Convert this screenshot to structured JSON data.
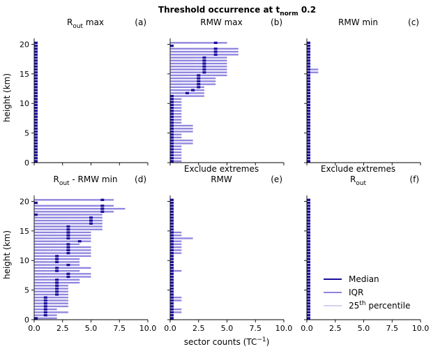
{
  "figure": {
    "title_main": "Threshold occurrence at t",
    "title_sub": "norm",
    "title_tail": " 0.2",
    "ylabel": "height (km)",
    "xlabel_main": "sector counts (TC",
    "xlabel_sup": "−1",
    "xlabel_tail": ")",
    "colors": {
      "median": "#1a0d9c",
      "iqr": "#8f85de",
      "p25": "#d4d0f2"
    },
    "legend": {
      "placement": "lower-right",
      "items": [
        {
          "key": "median",
          "text": "Median"
        },
        {
          "key": "iqr",
          "text": "IQR"
        },
        {
          "key": "p25",
          "text": "25",
          "sup": "th",
          "tail": " percentile"
        }
      ]
    }
  },
  "chart_data": [
    {
      "type": "bar",
      "letter": "(a)",
      "title_lines": [
        {
          "main": "R",
          "sub": "out",
          "tail": " max"
        }
      ],
      "xlabel": "",
      "ylabel": "height (km)",
      "xlim": [
        0,
        10
      ],
      "ylim": [
        0,
        21
      ],
      "x_ticks": [
        "0.0",
        "2.5",
        "5.0",
        "7.5",
        "10.0"
      ],
      "y_ticks": [
        "0",
        "5",
        "10",
        "15",
        "20"
      ],
      "heights": [
        0.25,
        0.75,
        1.25,
        1.75,
        2.25,
        2.75,
        3.25,
        3.75,
        4.25,
        4.75,
        5.25,
        5.75,
        6.25,
        6.75,
        7.25,
        7.75,
        8.25,
        8.75,
        9.25,
        9.75,
        10.25,
        10.75,
        11.25,
        11.75,
        12.25,
        12.75,
        13.25,
        13.75,
        14.25,
        14.75,
        15.25,
        15.75,
        16.25,
        16.75,
        17.25,
        17.75,
        18.25,
        18.75,
        19.25,
        19.75,
        20.25
      ],
      "p25": [
        0,
        0,
        0,
        0,
        0,
        0,
        0,
        0,
        0,
        0,
        0,
        0,
        0,
        0,
        0,
        0,
        0,
        0,
        0,
        0,
        0,
        0,
        0,
        0,
        0,
        0,
        0,
        0,
        0,
        0,
        0,
        0,
        0,
        0,
        0,
        0,
        0,
        0,
        0,
        0,
        0
      ],
      "iqr": [
        0.3,
        0.3,
        0.3,
        0.3,
        0.3,
        0.3,
        0.3,
        0.3,
        0.3,
        0.3,
        0.3,
        0.3,
        0.3,
        0.3,
        0.3,
        0.3,
        0.3,
        0.3,
        0.3,
        0.3,
        0.3,
        0.3,
        0.3,
        0.3,
        0.2,
        0.2,
        0.2,
        0.2,
        0.2,
        0.2,
        0.2,
        0.2,
        0.2,
        0.2,
        0.2,
        0.2,
        0.2,
        0.2,
        0.2,
        0.2,
        0.2
      ],
      "median": [
        0,
        0,
        0,
        0,
        0,
        0,
        0,
        0,
        0,
        0,
        0,
        0,
        0,
        0,
        0,
        0,
        0,
        0,
        0,
        0,
        0,
        0,
        0,
        0,
        0,
        0,
        0,
        0,
        0,
        0,
        0,
        0,
        0,
        0,
        0,
        0,
        0,
        0,
        0,
        0,
        0
      ]
    },
    {
      "type": "bar",
      "letter": "(b)",
      "title_lines": [
        {
          "main": "RMW max",
          "sub": "",
          "tail": ""
        }
      ],
      "xlabel": "",
      "ylabel": "",
      "xlim": [
        0,
        10
      ],
      "ylim": [
        0,
        21
      ],
      "x_ticks": [
        "0.0",
        "2.5",
        "5.0",
        "7.5",
        "10.0"
      ],
      "y_ticks": [
        "0",
        "5",
        "10",
        "15",
        "20"
      ],
      "heights": [
        0.25,
        0.75,
        1.25,
        1.75,
        2.25,
        2.75,
        3.25,
        3.75,
        4.25,
        4.75,
        5.25,
        5.75,
        6.25,
        6.75,
        7.25,
        7.75,
        8.25,
        8.75,
        9.25,
        9.75,
        10.25,
        10.75,
        11.25,
        11.75,
        12.25,
        12.75,
        13.25,
        13.75,
        14.25,
        14.75,
        15.25,
        15.75,
        16.25,
        16.75,
        17.25,
        17.75,
        18.25,
        18.75,
        19.25,
        19.75,
        20.25
      ],
      "p25": [
        0,
        0,
        0,
        0,
        0,
        0,
        0,
        0,
        0,
        0,
        0,
        0,
        0,
        0,
        0,
        0,
        0,
        0,
        0,
        0,
        0,
        0,
        0,
        0,
        1,
        1,
        1,
        1,
        1,
        1.5,
        2,
        2,
        2,
        2,
        2,
        2,
        2,
        2,
        2,
        0,
        2
      ],
      "iqr": [
        1,
        1,
        1,
        1,
        1,
        1,
        2,
        2,
        1,
        1,
        2,
        2,
        2,
        1,
        1,
        1,
        1,
        1,
        1,
        1,
        1,
        1,
        3,
        3,
        3,
        3,
        4,
        4,
        4,
        5,
        5,
        5,
        5,
        5,
        5,
        5,
        6,
        6,
        6,
        0,
        5
      ],
      "median": [
        0,
        0,
        0,
        0,
        0,
        0,
        0,
        0,
        0,
        0,
        0,
        0,
        0,
        0,
        0,
        0,
        0,
        0,
        0,
        0,
        0,
        0,
        0,
        1.5,
        2,
        2.5,
        2.5,
        2.5,
        2.5,
        2.5,
        3,
        3,
        3,
        3,
        3,
        3,
        4,
        4,
        4,
        0,
        4
      ]
    },
    {
      "type": "bar",
      "letter": "(c)",
      "title_lines": [
        {
          "main": "RMW min",
          "sub": "",
          "tail": ""
        }
      ],
      "xlabel": "",
      "ylabel": "",
      "xlim": [
        0,
        10
      ],
      "ylim": [
        0,
        21
      ],
      "x_ticks": [
        "0.0",
        "2.5",
        "5.0",
        "7.5",
        "10.0"
      ],
      "y_ticks": [
        "0",
        "5",
        "10",
        "15",
        "20"
      ],
      "heights": [
        0.25,
        0.75,
        1.25,
        1.75,
        2.25,
        2.75,
        3.25,
        3.75,
        4.25,
        4.75,
        5.25,
        5.75,
        6.25,
        6.75,
        7.25,
        7.75,
        8.25,
        8.75,
        9.25,
        9.75,
        10.25,
        10.75,
        11.25,
        11.75,
        12.25,
        12.75,
        13.25,
        13.75,
        14.25,
        14.75,
        15.25,
        15.75,
        16.25,
        16.75,
        17.25,
        17.75,
        18.25,
        18.75,
        19.25,
        19.75,
        20.25
      ],
      "p25": [
        0,
        0,
        0,
        0,
        0,
        0,
        0,
        0,
        0,
        0,
        0,
        0,
        0,
        0,
        0,
        0,
        0,
        0,
        0,
        0,
        0,
        0,
        0,
        0,
        0,
        0,
        0,
        0,
        0,
        0,
        0,
        0,
        0,
        0,
        0,
        0,
        0,
        0,
        0,
        0,
        0
      ],
      "iqr": [
        0.3,
        0.3,
        0.3,
        0.3,
        0.3,
        0.3,
        0.3,
        0.3,
        0.3,
        0.3,
        0.3,
        0.3,
        0.3,
        0.3,
        0.3,
        0.3,
        0.3,
        0.3,
        0.3,
        0.3,
        0.3,
        0.3,
        0.3,
        0.3,
        0.2,
        0.2,
        0.2,
        0.2,
        0.2,
        0.2,
        1,
        1,
        0.2,
        0.2,
        0.2,
        0.2,
        0.2,
        0.2,
        0.2,
        0.2,
        0.2
      ],
      "median": [
        0,
        0,
        0,
        0,
        0,
        0,
        0,
        0,
        0,
        0,
        0,
        0,
        0,
        0,
        0,
        0,
        0,
        0,
        0,
        0,
        0,
        0,
        0,
        0,
        0,
        0,
        0,
        0,
        0,
        0,
        0,
        0,
        0,
        0,
        0,
        0,
        0,
        0,
        0,
        0,
        0
      ]
    },
    {
      "type": "bar",
      "letter": "(d)",
      "title_lines": [
        {
          "main": "R",
          "sub": "out",
          "tail": " - RMW min"
        }
      ],
      "xlabel": "",
      "ylabel": "height (km)",
      "xlim": [
        0,
        10
      ],
      "ylim": [
        0,
        21
      ],
      "x_ticks": [
        "0.0",
        "2.5",
        "5.0",
        "7.5",
        "10.0"
      ],
      "y_ticks": [
        "0",
        "5",
        "10",
        "15",
        "20"
      ],
      "heights": [
        0.25,
        0.75,
        1.25,
        1.75,
        2.25,
        2.75,
        3.25,
        3.75,
        4.25,
        4.75,
        5.25,
        5.75,
        6.25,
        6.75,
        7.25,
        7.75,
        8.25,
        8.75,
        9.25,
        9.75,
        10.25,
        10.75,
        11.25,
        11.75,
        12.25,
        12.75,
        13.25,
        13.75,
        14.25,
        14.75,
        15.25,
        15.75,
        16.25,
        16.75,
        17.25,
        17.75,
        18.25,
        18.75,
        19.25,
        19.75,
        20.25
      ],
      "p25": [
        0,
        0,
        0,
        0,
        0,
        0,
        0,
        0,
        0,
        0,
        0,
        0,
        1,
        1,
        1,
        1,
        1,
        1,
        1,
        1,
        1,
        1,
        1,
        1,
        2,
        2,
        2,
        1,
        2,
        2,
        3,
        3,
        3,
        3,
        4,
        4,
        4,
        4,
        4,
        0,
        4
      ],
      "iqr": [
        2,
        2,
        3,
        2,
        3,
        3,
        3,
        3,
        3,
        3,
        3,
        3,
        4,
        4,
        5,
        5,
        4,
        5,
        4,
        4,
        4,
        5,
        5,
        5,
        5,
        4,
        5,
        5,
        5,
        5,
        6,
        6,
        6,
        6,
        6,
        6,
        7,
        8,
        7,
        0,
        7
      ],
      "median": [
        0,
        1,
        1,
        1,
        1,
        1,
        1,
        1,
        2,
        2,
        2,
        2,
        2,
        2,
        3,
        3,
        2,
        2,
        3,
        2,
        2,
        2,
        3,
        3,
        3,
        3,
        4,
        3,
        3,
        3,
        3,
        3,
        5,
        5,
        5,
        0,
        6,
        6,
        6,
        0,
        6
      ]
    },
    {
      "type": "bar",
      "letter": "(e)",
      "title_lines": [
        {
          "main": "Exclude extremes",
          "sub": "",
          "tail": ""
        },
        {
          "main": "RMW",
          "sub": "",
          "tail": ""
        }
      ],
      "xlabel": "",
      "ylabel": "",
      "xlim": [
        0,
        10
      ],
      "ylim": [
        0,
        21
      ],
      "x_ticks": [
        "0.0",
        "2.5",
        "5.0",
        "7.5",
        "10.0"
      ],
      "y_ticks": [
        "0",
        "5",
        "10",
        "15",
        "20"
      ],
      "heights": [
        0.25,
        0.75,
        1.25,
        1.75,
        2.25,
        2.75,
        3.25,
        3.75,
        4.25,
        4.75,
        5.25,
        5.75,
        6.25,
        6.75,
        7.25,
        7.75,
        8.25,
        8.75,
        9.25,
        9.75,
        10.25,
        10.75,
        11.25,
        11.75,
        12.25,
        12.75,
        13.25,
        13.75,
        14.25,
        14.75,
        15.25,
        15.75,
        16.25,
        16.75,
        17.25,
        17.75,
        18.25,
        18.75,
        19.25,
        19.75,
        20.25
      ],
      "p25": [
        0,
        0,
        0,
        0,
        0,
        0,
        0,
        0,
        0,
        0,
        0,
        0,
        0,
        0,
        0,
        0,
        0,
        0,
        0,
        0,
        0,
        0,
        0,
        0,
        0,
        0,
        0,
        0,
        0,
        0,
        0,
        0,
        0,
        0,
        0,
        0,
        0,
        0,
        0,
        0,
        0
      ],
      "iqr": [
        0.3,
        0.3,
        1,
        1,
        0.3,
        0.3,
        1,
        1,
        0.3,
        0.3,
        0.3,
        0.3,
        0.3,
        0.3,
        0.3,
        0.3,
        1,
        0.3,
        0.3,
        0.3,
        0.3,
        0.3,
        1,
        1,
        1,
        1,
        1,
        2,
        1,
        1,
        0.3,
        0.3,
        0.3,
        0.3,
        0.3,
        0.3,
        0.3,
        0.3,
        0.3,
        0.3,
        0.3
      ],
      "median": [
        0,
        0,
        0,
        0,
        0,
        0,
        0,
        0,
        0,
        0,
        0,
        0,
        0,
        0,
        0,
        0,
        0,
        0,
        0,
        0,
        0,
        0,
        0,
        0,
        0,
        0,
        0,
        0,
        0,
        0,
        0,
        0,
        0,
        0,
        0,
        0,
        0,
        0,
        0,
        0,
        0
      ]
    },
    {
      "type": "bar",
      "letter": "(f)",
      "title_lines": [
        {
          "main": "Exclude extremes",
          "sub": "",
          "tail": ""
        },
        {
          "main": "R",
          "sub": "out",
          "tail": ""
        }
      ],
      "xlabel": "",
      "ylabel": "",
      "xlim": [
        0,
        10
      ],
      "ylim": [
        0,
        21
      ],
      "x_ticks": [
        "0.0",
        "2.5",
        "5.0",
        "7.5",
        "10.0"
      ],
      "y_ticks": [
        "0",
        "5",
        "10",
        "15",
        "20"
      ],
      "heights": [
        0.25,
        0.75,
        1.25,
        1.75,
        2.25,
        2.75,
        3.25,
        3.75,
        4.25,
        4.75,
        5.25,
        5.75,
        6.25,
        6.75,
        7.25,
        7.75,
        8.25,
        8.75,
        9.25,
        9.75,
        10.25,
        10.75,
        11.25,
        11.75,
        12.25,
        12.75,
        13.25,
        13.75,
        14.25,
        14.75,
        15.25,
        15.75,
        16.25,
        16.75,
        17.25,
        17.75,
        18.25,
        18.75,
        19.25,
        19.75,
        20.25
      ],
      "p25": [
        0,
        0,
        0,
        0,
        0,
        0,
        0,
        0,
        0,
        0,
        0,
        0,
        0,
        0,
        0,
        0,
        0,
        0,
        0,
        0,
        0,
        0,
        0,
        0,
        0,
        0,
        0,
        0,
        0,
        0,
        0,
        0,
        0,
        0,
        0,
        0,
        0,
        0,
        0,
        0,
        0
      ],
      "iqr": [
        0.3,
        0.3,
        0.3,
        0.3,
        0.3,
        0.3,
        0.3,
        0.3,
        0.3,
        0.3,
        0.3,
        0.3,
        0.3,
        0.3,
        0.3,
        0.3,
        0.3,
        0.3,
        0.3,
        0.3,
        0.3,
        0.3,
        0.3,
        0.3,
        0.2,
        0.2,
        0.2,
        0.2,
        0.2,
        0.2,
        0.2,
        0.2,
        0.2,
        0.2,
        0.2,
        0.2,
        0.2,
        0.2,
        0.2,
        0.2,
        0.2
      ],
      "median": [
        0,
        0,
        0,
        0,
        0,
        0,
        0,
        0,
        0,
        0,
        0,
        0,
        0,
        0,
        0,
        0,
        0,
        0,
        0,
        0,
        0,
        0,
        0,
        0,
        0,
        0,
        0,
        0,
        0,
        0,
        0,
        0,
        0,
        0,
        0,
        0,
        0,
        0,
        0,
        0,
        0
      ]
    }
  ]
}
